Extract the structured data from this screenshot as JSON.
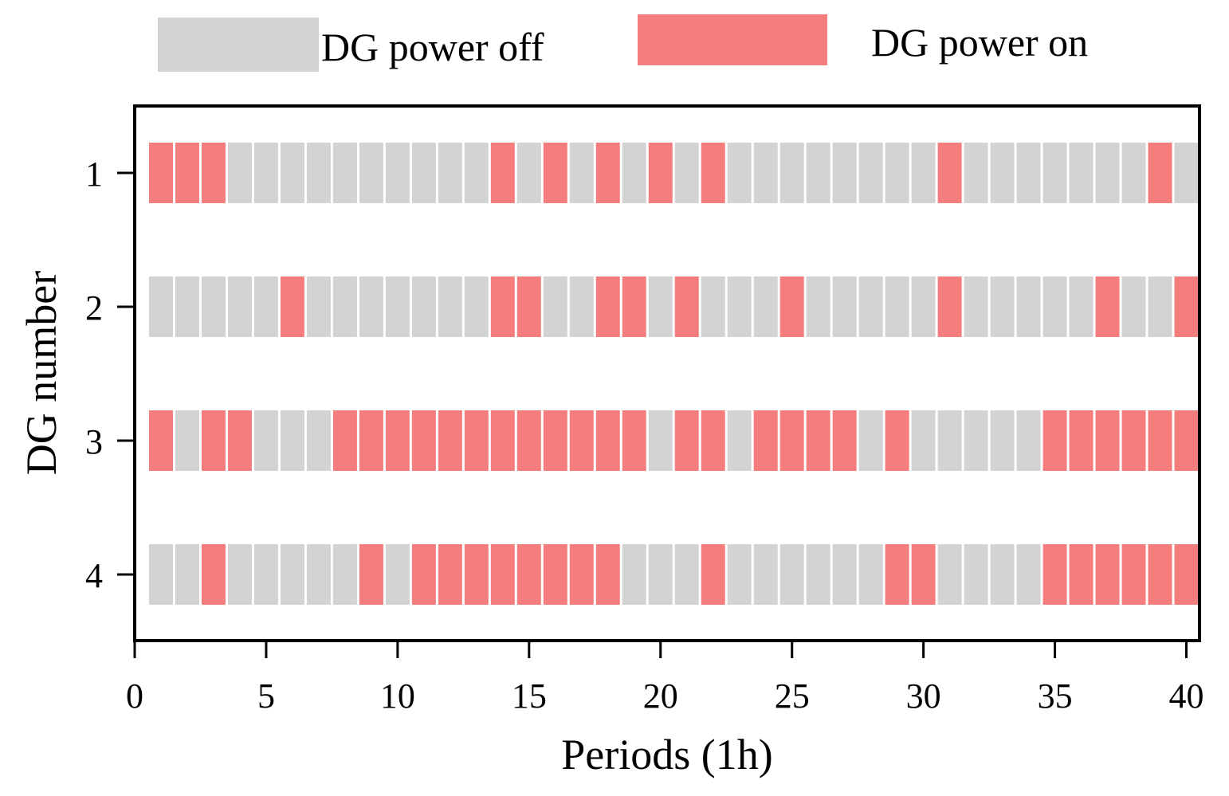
{
  "chart_data": {
    "type": "heatmap",
    "xlabel": "Periods (1h)",
    "ylabel": "DG number",
    "xlim": [
      0,
      40.5
    ],
    "ylim": [
      0.5,
      4.5
    ],
    "x_ticks": [
      0,
      5,
      10,
      15,
      20,
      25,
      30,
      35,
      40
    ],
    "y_categories": [
      "1",
      "2",
      "3",
      "4"
    ],
    "periods": 40,
    "legend": {
      "off_label": "DG power off",
      "on_label": "DG power on"
    },
    "colors": {
      "off": "#d3d3d3",
      "on": "#f67d7d"
    },
    "series": [
      {
        "name": "1",
        "status": [
          1,
          1,
          1,
          0,
          0,
          0,
          0,
          0,
          0,
          0,
          0,
          0,
          0,
          1,
          0,
          1,
          0,
          1,
          0,
          1,
          0,
          1,
          0,
          0,
          0,
          0,
          0,
          0,
          0,
          0,
          1,
          0,
          0,
          0,
          0,
          0,
          0,
          0,
          1,
          0
        ]
      },
      {
        "name": "2",
        "status": [
          0,
          0,
          0,
          0,
          0,
          1,
          0,
          0,
          0,
          0,
          0,
          0,
          0,
          1,
          1,
          0,
          0,
          1,
          1,
          0,
          1,
          0,
          0,
          0,
          1,
          0,
          0,
          0,
          0,
          0,
          1,
          0,
          0,
          0,
          0,
          0,
          1,
          0,
          0,
          1
        ]
      },
      {
        "name": "3",
        "status": [
          1,
          0,
          1,
          1,
          0,
          0,
          0,
          1,
          1,
          1,
          1,
          1,
          1,
          1,
          1,
          1,
          1,
          1,
          1,
          0,
          1,
          1,
          0,
          1,
          1,
          1,
          1,
          0,
          1,
          0,
          0,
          0,
          0,
          0,
          1,
          1,
          1,
          1,
          1,
          1
        ]
      },
      {
        "name": "4",
        "status": [
          0,
          0,
          1,
          0,
          0,
          0,
          0,
          0,
          1,
          0,
          1,
          1,
          1,
          1,
          1,
          1,
          1,
          1,
          0,
          0,
          0,
          1,
          0,
          0,
          0,
          0,
          0,
          0,
          1,
          1,
          0,
          0,
          0,
          0,
          1,
          1,
          1,
          1,
          1,
          1
        ]
      }
    ]
  }
}
